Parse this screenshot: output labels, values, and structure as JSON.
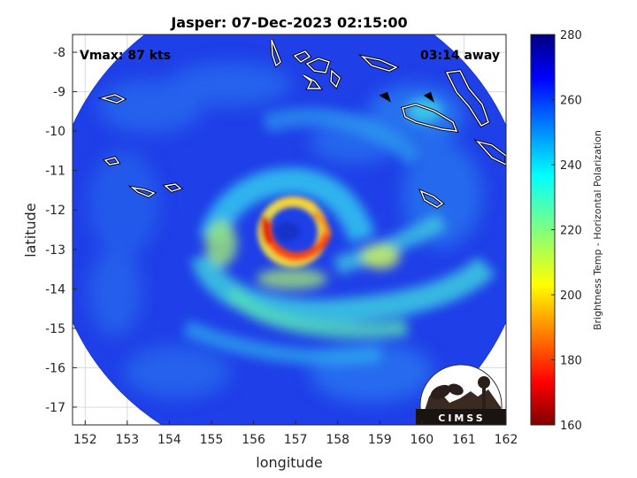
{
  "title": "Jasper: 07-Dec-2023 02:15:00",
  "annotations": {
    "vmax": "Vmax: 87 kts",
    "time_away": "03:14 away"
  },
  "axes": {
    "xlabel": "longitude",
    "ylabel": "latitude",
    "xlim": [
      151.7,
      162.0
    ],
    "ylim": [
      -17.45,
      -7.55
    ],
    "xticks": [
      152,
      153,
      154,
      155,
      156,
      157,
      158,
      159,
      160,
      161,
      162
    ],
    "yticks": [
      -8,
      -9,
      -10,
      -11,
      -12,
      -13,
      -14,
      -15,
      -16,
      -17
    ],
    "grid": true
  },
  "colorbar": {
    "label": "Brightness Temp - Horizontal Polarization",
    "range": [
      160,
      280
    ],
    "ticks": [
      280,
      260,
      240,
      220,
      200,
      180,
      160
    ],
    "colormap": "jet"
  },
  "swath": {
    "center_lon": 156.85,
    "center_lat": -12.35,
    "radius_deg": 5.65
  },
  "storm": {
    "eye_lon": 156.8,
    "eye_lat": -12.55
  },
  "logo": {
    "text": "CIMSS"
  },
  "colors": {
    "coast": "#000000",
    "axis": "#262626",
    "grid": "#d9d9d9"
  }
}
